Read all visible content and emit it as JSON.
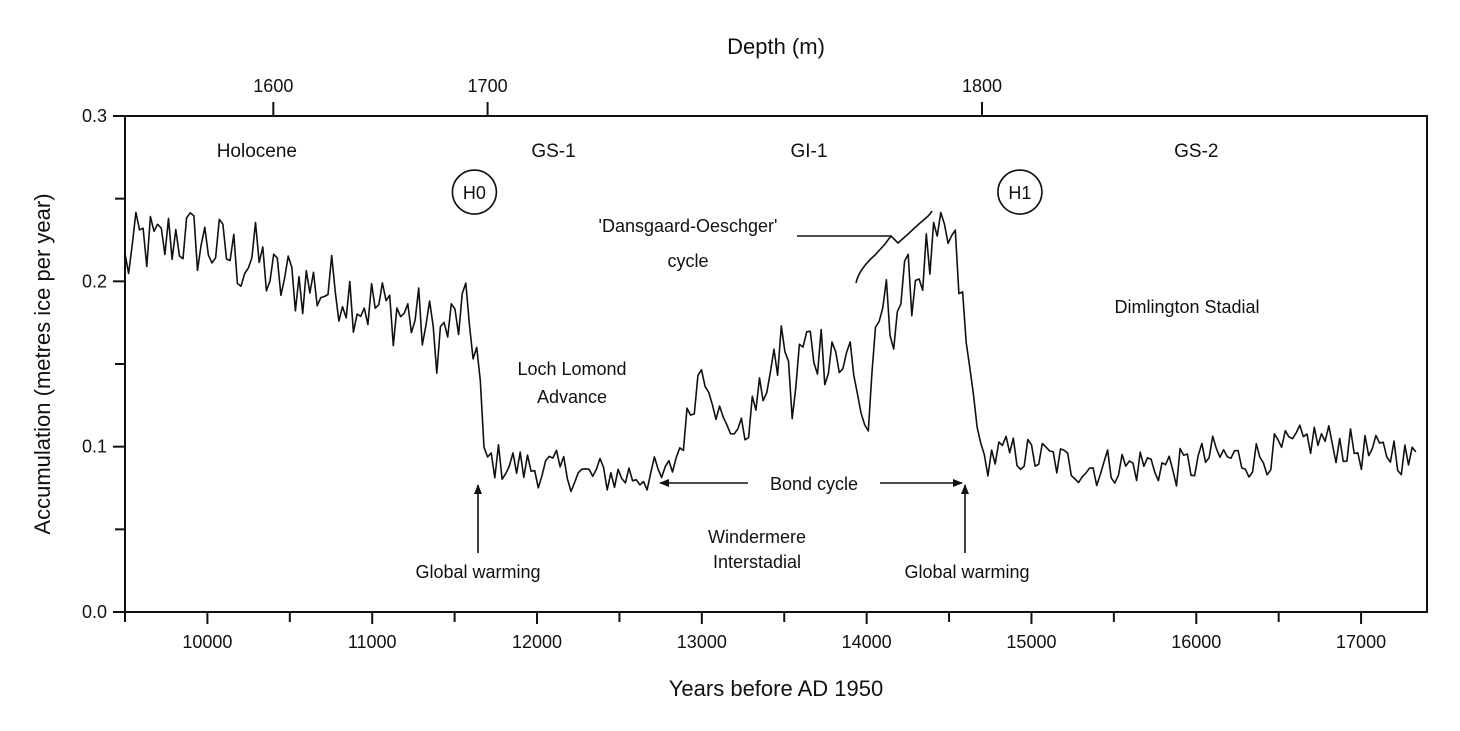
{
  "chart_data": {
    "type": "line",
    "xlabel": "Years before AD 1950",
    "ylabel": "Accumulation (metres ice per year)",
    "top_axis_label": "Depth (m)",
    "xlim": [
      9500,
      17400
    ],
    "ylim": [
      0.0,
      0.3
    ],
    "x_ticks": [
      "10000",
      "11000",
      "12000",
      "13000",
      "14000",
      "15000",
      "16000",
      "17000"
    ],
    "y_ticks": [
      "0.0",
      "0.1",
      "0.2",
      "0.3"
    ],
    "depth_ticks": [
      {
        "label": "1600",
        "year": 10400
      },
      {
        "label": "1700",
        "year": 11700
      },
      {
        "label": "1800",
        "year": 14700
      }
    ],
    "grid": false,
    "legend": "none",
    "periods": [
      {
        "label": "Holocene",
        "year": 10300
      },
      {
        "label": "GS-1",
        "year": 12100
      },
      {
        "label": "GI-1",
        "year": 13650
      },
      {
        "label": "GS-2",
        "year": 16000
      }
    ],
    "events": [
      {
        "label": "H0",
        "year": 11620,
        "y": 0.254
      },
      {
        "label": "H1",
        "year": 14930,
        "y": 0.254
      }
    ],
    "annotations": {
      "dansgaard_line1": "'Dansgaard-Oeschger'",
      "dansgaard_line2": "cycle",
      "loch_lomond_line1": "Loch Lomond",
      "loch_lomond_line2": "Advance",
      "dimlington": "Dimlington Stadial",
      "bond_cycle": "Bond cycle",
      "windermere_line1": "Windermere",
      "windermere_line2": "Interstadial",
      "global_warming_left": "Global warming",
      "global_warming_right": "Global warming"
    },
    "series": [
      {
        "x": [
          9500,
          9600,
          9700,
          9800,
          9900,
          10000,
          10100,
          10200,
          10300,
          10400,
          10500,
          10600,
          10700,
          10800,
          10900,
          11000,
          11100,
          11200,
          11300,
          11400,
          11500,
          11550,
          11600,
          11650,
          11680,
          11700,
          11800,
          11900,
          12000,
          12100,
          12200,
          12300,
          12400,
          12500,
          12600,
          12700,
          12780,
          12850,
          12900,
          12950,
          13000,
          13050,
          13100,
          13150,
          13200,
          13250,
          13300,
          13400,
          13450,
          13500,
          13550,
          13600,
          13650,
          13700,
          13750,
          13800,
          13850,
          13900,
          13950,
          14000,
          14050,
          14100,
          14150,
          14200,
          14250,
          14300,
          14350,
          14400,
          14450,
          14500,
          14550,
          14600,
          14650,
          14700,
          14800,
          14900,
          15000,
          15100,
          15200,
          15300,
          15400,
          15500,
          15600,
          15700,
          15800,
          15900,
          16000,
          16100,
          16200,
          16300,
          16400,
          16500,
          16600,
          16700,
          16800,
          16900,
          17000,
          17100,
          17200,
          17300,
          17350
        ],
        "y": [
          0.21,
          0.225,
          0.22,
          0.228,
          0.225,
          0.222,
          0.218,
          0.212,
          0.215,
          0.2,
          0.2,
          0.198,
          0.195,
          0.197,
          0.19,
          0.185,
          0.183,
          0.18,
          0.175,
          0.165,
          0.175,
          0.18,
          0.172,
          0.15,
          0.093,
          0.092,
          0.09,
          0.088,
          0.087,
          0.086,
          0.085,
          0.082,
          0.083,
          0.082,
          0.083,
          0.083,
          0.08,
          0.095,
          0.11,
          0.13,
          0.15,
          0.14,
          0.12,
          0.108,
          0.115,
          0.105,
          0.12,
          0.14,
          0.15,
          0.17,
          0.12,
          0.158,
          0.162,
          0.16,
          0.158,
          0.165,
          0.14,
          0.16,
          0.13,
          0.105,
          0.15,
          0.19,
          0.175,
          0.19,
          0.195,
          0.205,
          0.21,
          0.215,
          0.22,
          0.225,
          0.21,
          0.165,
          0.13,
          0.093,
          0.095,
          0.096,
          0.094,
          0.093,
          0.09,
          0.088,
          0.087,
          0.089,
          0.088,
          0.09,
          0.088,
          0.087,
          0.09,
          0.095,
          0.093,
          0.092,
          0.094,
          0.097,
          0.1,
          0.105,
          0.103,
          0.1,
          0.097,
          0.095,
          0.098,
          0.09,
          0.095
        ]
      }
    ]
  }
}
